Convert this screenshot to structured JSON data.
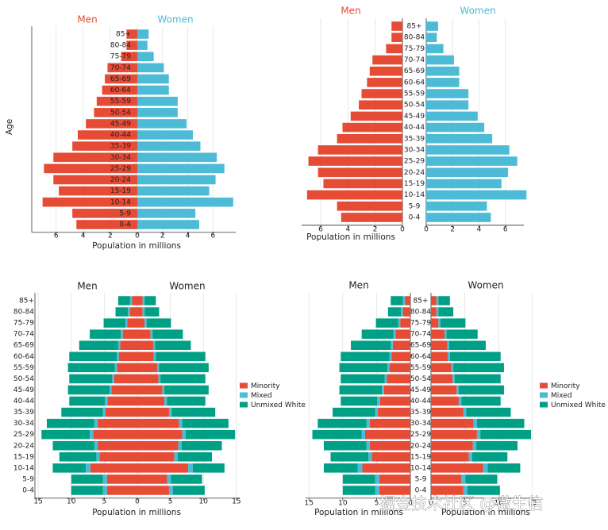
{
  "chart_data": [
    {
      "type": "pyramid",
      "layout": "shared",
      "men_title": "Men",
      "women_title": "Women",
      "title_colored": true,
      "ylabel": "Age",
      "xlabel": "Population in millions",
      "categories": [
        "85+",
        "80-84",
        "75-79",
        "70-74",
        "65-69",
        "60-64",
        "55-59",
        "50-54",
        "45-49",
        "40-44",
        "35-39",
        "30-34",
        "25-29",
        "20-24",
        "15-19",
        "10-14",
        "5-9",
        "0-4"
      ],
      "series": [
        {
          "color_men": "#e64b35",
          "color_women": "#4dbbd5",
          "men": [
            0.8,
            0.8,
            1.2,
            2.2,
            2.4,
            2.6,
            3.0,
            3.2,
            3.8,
            4.4,
            4.8,
            6.2,
            6.9,
            6.2,
            5.8,
            7.0,
            4.8,
            4.5
          ],
          "women": [
            0.9,
            0.8,
            1.3,
            2.1,
            2.5,
            2.5,
            3.2,
            3.2,
            3.9,
            4.4,
            5.0,
            6.3,
            6.9,
            6.2,
            5.7,
            7.6,
            4.6,
            4.9
          ]
        }
      ],
      "xlim": [
        0,
        7.8
      ],
      "men_xticks": [
        6,
        4,
        2,
        0
      ],
      "women_xticks": [
        2,
        4,
        6
      ],
      "grid": true
    },
    {
      "type": "pyramid",
      "layout": "split",
      "men_title": "Men",
      "women_title": "Women",
      "title_colored": true,
      "men_xlabel": "Population in millions",
      "categories": [
        "85+",
        "80-84",
        "75-79",
        "70-74",
        "65-69",
        "60-64",
        "55-59",
        "50-54",
        "45-49",
        "40-44",
        "35-39",
        "30-34",
        "25-29",
        "20-24",
        "15-19",
        "10-14",
        "5-9",
        "0-4"
      ],
      "series": [
        {
          "color_men": "#e64b35",
          "color_women": "#4dbbd5",
          "men": [
            0.8,
            0.8,
            1.2,
            2.2,
            2.4,
            2.6,
            3.0,
            3.2,
            3.8,
            4.4,
            4.8,
            6.2,
            6.9,
            6.2,
            5.8,
            7.0,
            4.8,
            4.5
          ],
          "women": [
            0.9,
            0.8,
            1.3,
            2.1,
            2.5,
            2.5,
            3.2,
            3.2,
            3.9,
            4.4,
            5.0,
            6.3,
            6.9,
            6.2,
            5.7,
            7.6,
            4.6,
            4.9
          ]
        }
      ],
      "xlim": [
        0,
        7.4
      ],
      "men_xticks": [
        6,
        4,
        2,
        0
      ],
      "women_xticks": [
        0,
        2,
        4,
        6
      ],
      "grid": true
    },
    {
      "type": "pyramid",
      "layout": "shared",
      "men_title": "Men",
      "women_title": "Women",
      "title_colored": false,
      "xlabel": "Population in millions",
      "categories": [
        "85+",
        "80-84",
        "75-79",
        "70-74",
        "65-69",
        "60-64",
        "55-59",
        "50-54",
        "45-49",
        "40-44",
        "35-39",
        "30-34",
        "25-29",
        "20-24",
        "15-19",
        "10-14",
        "5-9",
        "0-4"
      ],
      "series": [
        {
          "name": "Minority",
          "color": "#e64b35",
          "men": [
            0.8,
            1.1,
            1.5,
            2.2,
            2.6,
            2.8,
            3.1,
            3.5,
            3.9,
            4.5,
            4.8,
            6.0,
            6.7,
            6.0,
            5.7,
            7.1,
            4.6,
            4.6
          ],
          "women": [
            0.8,
            0.8,
            1.1,
            2.0,
            2.4,
            2.5,
            3.0,
            3.2,
            3.8,
            4.1,
            4.8,
            6.3,
            6.8,
            6.2,
            5.6,
            7.7,
            4.5,
            4.8
          ]
        },
        {
          "name": "Mixed",
          "color": "#4dbbd5",
          "men": [
            0.3,
            0.3,
            0.3,
            0.3,
            0.3,
            0.3,
            0.3,
            0.3,
            0.3,
            0.4,
            0.4,
            0.5,
            0.5,
            0.5,
            0.5,
            0.7,
            0.6,
            0.6
          ],
          "women": [
            0.3,
            0.3,
            0.3,
            0.3,
            0.3,
            0.3,
            0.3,
            0.3,
            0.3,
            0.4,
            0.4,
            0.5,
            0.5,
            0.5,
            0.5,
            0.7,
            0.6,
            0.6
          ]
        },
        {
          "name": "Unmixed White",
          "color": "#00a087",
          "men": [
            1.8,
            1.9,
            3.3,
            4.7,
            5.9,
            7.2,
            7.1,
            6.5,
            6.3,
            5.4,
            6.3,
            7.2,
            7.3,
            6.3,
            5.6,
            5.0,
            4.8,
            4.8
          ],
          "women": [
            1.7,
            2.2,
            3.7,
            4.6,
            5.4,
            7.5,
            7.5,
            6.8,
            6.7,
            5.8,
            6.6,
            7.0,
            7.5,
            6.1,
            5.2,
            4.8,
            4.7,
            4.8
          ]
        }
      ],
      "xlim": [
        0,
        15.5
      ],
      "men_xticks": [
        15,
        10,
        5,
        0
      ],
      "women_xticks": [
        5,
        10,
        15
      ],
      "grid": true,
      "legend": "right"
    },
    {
      "type": "pyramid",
      "layout": "split",
      "men_title": "Men",
      "women_title": "Women",
      "title_colored": false,
      "men_xlabel": "Population in millions",
      "women_xlabel": "Population in millions",
      "categories": [
        "85+",
        "80-84",
        "75-79",
        "70-74",
        "65-69",
        "60-64",
        "55-59",
        "50-54",
        "45-49",
        "40-44",
        "35-39",
        "30-34",
        "25-29",
        "20-24",
        "15-19",
        "10-14",
        "5-9",
        "0-4"
      ],
      "series": [
        {
          "name": "Minority",
          "color": "#e64b35",
          "men": [
            0.8,
            1.1,
            1.5,
            2.2,
            2.6,
            2.8,
            3.1,
            3.5,
            3.9,
            4.5,
            4.8,
            6.0,
            6.7,
            6.0,
            5.7,
            7.1,
            4.6,
            4.6
          ],
          "women": [
            0.8,
            0.8,
            1.1,
            2.0,
            2.4,
            2.5,
            3.0,
            3.2,
            3.8,
            4.1,
            4.8,
            6.3,
            6.8,
            6.2,
            5.6,
            7.7,
            4.5,
            4.8
          ]
        },
        {
          "name": "Mixed",
          "color": "#4dbbd5",
          "men": [
            0.3,
            0.3,
            0.3,
            0.3,
            0.3,
            0.3,
            0.3,
            0.3,
            0.3,
            0.4,
            0.4,
            0.5,
            0.5,
            0.5,
            0.5,
            0.7,
            0.6,
            0.6
          ],
          "women": [
            0.3,
            0.3,
            0.3,
            0.3,
            0.3,
            0.3,
            0.3,
            0.3,
            0.3,
            0.4,
            0.4,
            0.5,
            0.5,
            0.5,
            0.5,
            0.7,
            0.6,
            0.6
          ]
        },
        {
          "name": "Unmixed White",
          "color": "#00a087",
          "men": [
            1.8,
            1.9,
            3.3,
            4.7,
            5.9,
            7.2,
            7.1,
            6.5,
            6.3,
            5.4,
            6.3,
            7.2,
            7.3,
            6.3,
            5.6,
            5.0,
            4.8,
            4.8
          ],
          "women": [
            1.7,
            2.2,
            3.7,
            4.6,
            5.4,
            7.5,
            7.5,
            6.8,
            6.7,
            5.8,
            6.6,
            7.0,
            7.5,
            6.1,
            5.2,
            4.8,
            4.7,
            4.8
          ]
        }
      ],
      "xlim": [
        0,
        15.5
      ],
      "men_xticks": [
        15,
        10,
        5,
        0
      ],
      "women_xticks": [
        0,
        5,
        10,
        15
      ],
      "grid": true,
      "legend": "right"
    }
  ],
  "watermark": "掘金技术社区 @微生信"
}
